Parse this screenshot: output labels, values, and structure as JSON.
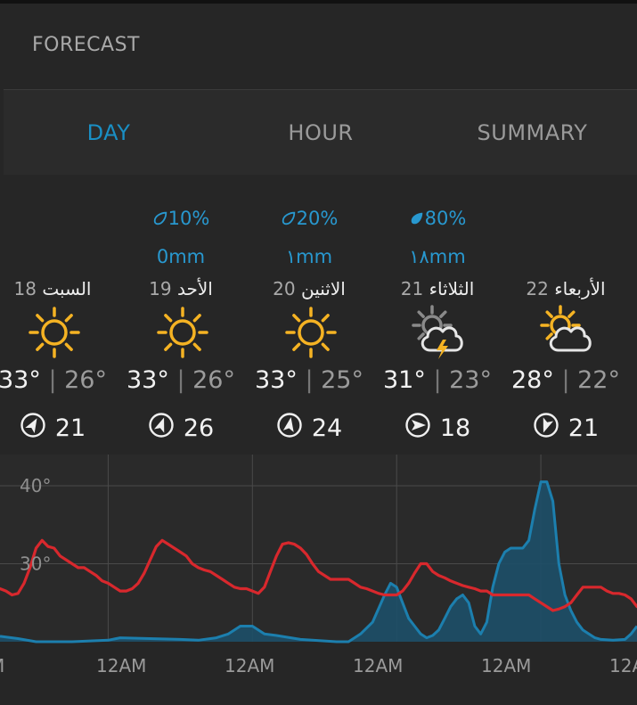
{
  "header": {
    "title": "FORECAST"
  },
  "tabs": [
    {
      "label": "DAY",
      "active": true
    },
    {
      "label": "HOUR",
      "active": false
    },
    {
      "label": "SUMMARY",
      "active": false
    }
  ],
  "days": [
    {
      "day_num": "18",
      "day_name": "السبت",
      "rain_pct": "",
      "rain_mm": "",
      "rain_icon": "",
      "weather_icon": "sun-icon",
      "hi": "33°",
      "lo": "26°",
      "wind": "21",
      "wind_deg": 30
    },
    {
      "day_num": "19",
      "day_name": "الأحد",
      "rain_pct": "10%",
      "rain_mm": "0mm",
      "rain_icon": "drop-outline-icon",
      "weather_icon": "sun-icon",
      "hi": "33°",
      "lo": "26°",
      "wind": "26",
      "wind_deg": 20
    },
    {
      "day_num": "20",
      "day_name": "الاثنين",
      "rain_pct": "20%",
      "rain_mm": "١mm",
      "rain_icon": "drop-outline-icon",
      "weather_icon": "sun-icon",
      "hi": "33°",
      "lo": "25°",
      "wind": "24",
      "wind_deg": 10
    },
    {
      "day_num": "21",
      "day_name": "الثلاثاء",
      "rain_pct": "80%",
      "rain_mm": "١٨mm",
      "rain_icon": "drop-filled-icon",
      "weather_icon": "thunderstorm-icon",
      "hi": "31°",
      "lo": "23°",
      "wind": "18",
      "wind_deg": 90
    },
    {
      "day_num": "22",
      "day_name": "الأربعاء",
      "rain_pct": "",
      "rain_mm": "",
      "rain_icon": "",
      "weather_icon": "partly-cloudy-icon",
      "hi": "28°",
      "lo": "22°",
      "wind": "21",
      "wind_deg": 200
    }
  ],
  "colors": {
    "accent": "#1a8fc4",
    "sun": "#f5b323",
    "temperature_line": "#d8282d",
    "rain_fill": "#1d4f68",
    "rain_line": "#1c7fae"
  },
  "chart_data": {
    "type": "line",
    "ytick_labels": [
      "40°",
      "30°"
    ],
    "xtick_labels": [
      "M",
      "12AM",
      "12AM",
      "12AM",
      "12AM",
      "12A"
    ],
    "ylim": [
      20,
      44
    ],
    "grid": true,
    "series": [
      {
        "kind": "temperature",
        "points": [
          [
            0,
            26.8
          ],
          [
            1,
            26.5
          ],
          [
            2,
            26
          ],
          [
            3,
            26.2
          ],
          [
            4,
            27.5
          ],
          [
            5,
            29.5
          ],
          [
            6,
            32
          ],
          [
            7,
            33
          ],
          [
            8,
            32.2
          ],
          [
            9,
            32
          ],
          [
            10,
            31
          ],
          [
            11,
            30.5
          ],
          [
            12,
            30
          ],
          [
            13,
            29.5
          ],
          [
            14,
            29.5
          ],
          [
            15,
            29
          ],
          [
            16,
            28.5
          ],
          [
            17,
            27.8
          ],
          [
            18,
            27.5
          ],
          [
            19,
            27
          ],
          [
            20,
            26.5
          ],
          [
            21,
            26.5
          ],
          [
            22,
            26.8
          ],
          [
            23,
            27.5
          ],
          [
            24,
            28.8
          ],
          [
            25,
            30.5
          ],
          [
            26,
            32.2
          ],
          [
            27,
            33
          ],
          [
            28,
            32.5
          ],
          [
            29,
            32
          ],
          [
            30,
            31.5
          ],
          [
            31,
            31
          ],
          [
            32,
            30
          ],
          [
            33,
            29.5
          ],
          [
            34,
            29.2
          ],
          [
            35,
            29
          ],
          [
            36,
            28.5
          ],
          [
            37,
            28
          ],
          [
            38,
            27.5
          ],
          [
            39,
            27
          ],
          [
            40,
            26.8
          ],
          [
            41,
            26.8
          ],
          [
            42,
            26.5
          ],
          [
            43,
            26.2
          ],
          [
            44,
            27
          ],
          [
            45,
            29
          ],
          [
            46,
            31
          ],
          [
            47,
            32.5
          ],
          [
            48,
            32.7
          ],
          [
            49,
            32.5
          ],
          [
            50,
            32
          ],
          [
            51,
            31.2
          ],
          [
            52,
            30
          ],
          [
            53,
            29
          ],
          [
            54,
            28.5
          ],
          [
            55,
            28
          ],
          [
            56,
            28
          ],
          [
            57,
            28
          ],
          [
            58,
            28
          ],
          [
            59,
            27.5
          ],
          [
            60,
            27
          ],
          [
            61,
            26.8
          ],
          [
            62,
            26.5
          ],
          [
            63,
            26.2
          ],
          [
            64,
            26
          ],
          [
            65,
            26
          ],
          [
            66,
            26
          ],
          [
            67,
            26.5
          ],
          [
            68,
            27.5
          ],
          [
            69,
            28.8
          ],
          [
            70,
            30
          ],
          [
            71,
            30
          ],
          [
            72,
            29
          ],
          [
            73,
            28.5
          ],
          [
            74,
            28.2
          ],
          [
            75,
            27.8
          ],
          [
            76,
            27.5
          ],
          [
            77,
            27.2
          ],
          [
            78,
            27
          ],
          [
            79,
            26.8
          ],
          [
            80,
            26.5
          ],
          [
            81,
            26.5
          ],
          [
            82,
            26
          ],
          [
            83,
            26
          ],
          [
            84,
            26
          ],
          [
            85,
            26
          ],
          [
            86,
            26
          ],
          [
            87,
            26
          ],
          [
            88,
            26
          ],
          [
            89,
            25.5
          ],
          [
            90,
            25
          ],
          [
            91,
            24.5
          ],
          [
            92,
            24
          ],
          [
            93,
            24.2
          ],
          [
            94,
            24.5
          ],
          [
            95,
            25
          ],
          [
            96,
            26
          ],
          [
            97,
            27
          ],
          [
            98,
            27
          ],
          [
            99,
            27
          ],
          [
            100,
            27
          ],
          [
            101,
            26.5
          ],
          [
            102,
            26.2
          ],
          [
            103,
            26.2
          ],
          [
            104,
            26
          ],
          [
            105,
            25.5
          ],
          [
            106,
            24.5
          ]
        ]
      },
      {
        "kind": "rain",
        "points": [
          [
            0,
            20.7
          ],
          [
            3,
            20.4
          ],
          [
            6,
            20
          ],
          [
            12,
            20
          ],
          [
            18,
            20.2
          ],
          [
            20,
            20.5
          ],
          [
            30,
            20.3
          ],
          [
            33,
            20.2
          ],
          [
            36,
            20.5
          ],
          [
            38,
            21
          ],
          [
            40,
            22
          ],
          [
            42,
            22
          ],
          [
            44,
            21
          ],
          [
            46,
            20.8
          ],
          [
            50,
            20.3
          ],
          [
            56,
            20
          ],
          [
            58,
            20
          ],
          [
            60,
            21
          ],
          [
            62,
            22.5
          ],
          [
            64,
            26
          ],
          [
            65,
            27.5
          ],
          [
            66,
            27
          ],
          [
            67,
            25
          ],
          [
            68,
            23
          ],
          [
            69,
            22
          ],
          [
            70,
            21
          ],
          [
            71,
            20.5
          ],
          [
            72,
            20.8
          ],
          [
            73,
            21.5
          ],
          [
            74,
            23
          ],
          [
            75,
            24.5
          ],
          [
            76,
            25.5
          ],
          [
            77,
            26
          ],
          [
            78,
            25
          ],
          [
            79,
            22
          ],
          [
            80,
            21
          ],
          [
            81,
            22.5
          ],
          [
            82,
            27
          ],
          [
            83,
            30
          ],
          [
            84,
            31.5
          ],
          [
            85,
            32
          ],
          [
            86,
            32
          ],
          [
            87,
            32
          ],
          [
            88,
            33
          ],
          [
            89,
            37
          ],
          [
            90,
            40.5
          ],
          [
            91,
            40.5
          ],
          [
            92,
            38
          ],
          [
            93,
            30
          ],
          [
            94,
            26
          ],
          [
            95,
            24
          ],
          [
            96,
            22.5
          ],
          [
            97,
            21.5
          ],
          [
            98,
            21
          ],
          [
            99,
            20.5
          ],
          [
            100,
            20.3
          ],
          [
            102,
            20.2
          ],
          [
            104,
            20.3
          ],
          [
            105,
            21
          ],
          [
            106,
            22
          ]
        ]
      }
    ]
  }
}
